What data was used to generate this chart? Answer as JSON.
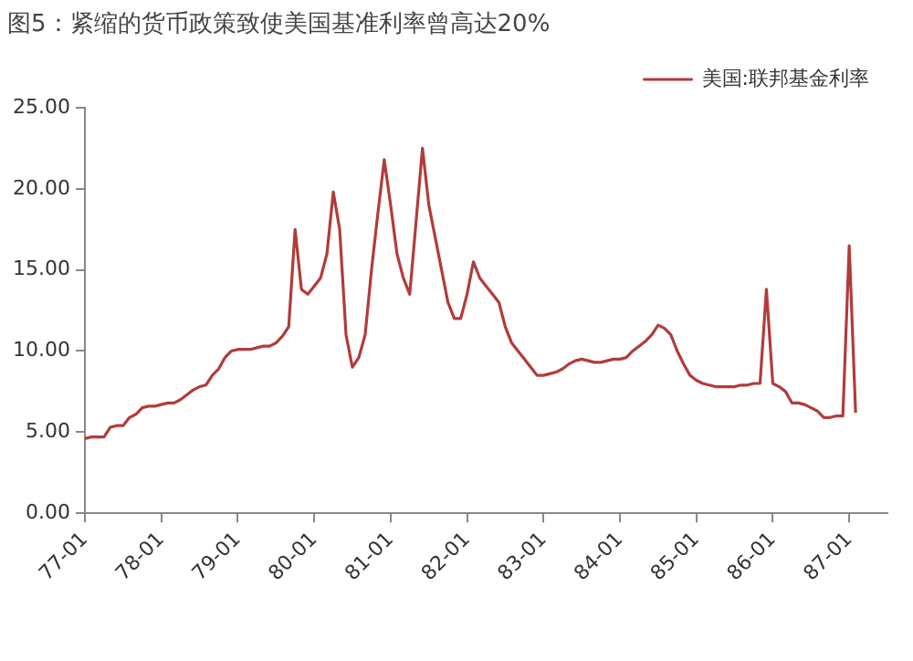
{
  "chart_data": {
    "type": "line",
    "title": "图5：紧缩的货币政策致使美国基准利率曾高达20%",
    "categories": [
      "77-01",
      null,
      null,
      null,
      null,
      null,
      null,
      null,
      null,
      null,
      null,
      null,
      "78-01",
      null,
      null,
      null,
      null,
      null,
      null,
      null,
      null,
      null,
      null,
      null,
      "79-01",
      null,
      null,
      null,
      null,
      null,
      null,
      null,
      null,
      null,
      null,
      null,
      "80-01",
      null,
      null,
      null,
      null,
      null,
      null,
      null,
      null,
      null,
      null,
      null,
      "81-01",
      null,
      null,
      null,
      null,
      null,
      null,
      null,
      null,
      null,
      null,
      null,
      "82-01",
      null,
      null,
      null,
      null,
      null,
      null,
      null,
      null,
      null,
      null,
      null,
      "83-01",
      null,
      null,
      null,
      null,
      null,
      null,
      null,
      null,
      null,
      null,
      null,
      "84-01",
      null,
      null,
      null,
      null,
      null,
      null,
      null,
      null,
      null,
      null,
      null,
      "85-01",
      null,
      null,
      null,
      null,
      null,
      null,
      null,
      null,
      null,
      null,
      null,
      "86-01",
      null,
      null,
      null,
      null,
      null,
      null,
      null,
      null,
      null,
      null,
      null,
      "87-01",
      null,
      null,
      null,
      null,
      null,
      null
    ],
    "series": [
      {
        "name": "美国:联邦基金利率",
        "color": "#b23b3b",
        "values": [
          4.6,
          4.7,
          4.7,
          4.7,
          5.3,
          5.4,
          5.4,
          5.9,
          6.1,
          6.5,
          6.6,
          6.6,
          6.7,
          6.8,
          6.8,
          7.0,
          7.3,
          7.6,
          7.8,
          7.9,
          8.5,
          8.9,
          9.6,
          10.0,
          10.1,
          10.1,
          10.1,
          10.2,
          10.3,
          10.3,
          10.5,
          10.9,
          11.5,
          17.5,
          13.8,
          13.5,
          14.0,
          14.5,
          16.0,
          19.8,
          17.5,
          11.0,
          9.0,
          9.6,
          11.0,
          15.0,
          18.5,
          21.8,
          19.0,
          16.0,
          14.5,
          13.5,
          18.0,
          22.5,
          19.0,
          17.0,
          15.0,
          13.0,
          12.0,
          12.0,
          13.5,
          15.5,
          14.5,
          14.0,
          13.5,
          13.0,
          11.5,
          10.5,
          10.0,
          9.5,
          9.0,
          8.5,
          8.5,
          8.6,
          8.7,
          8.9,
          9.2,
          9.4,
          9.5,
          9.4,
          9.3,
          9.3,
          9.4,
          9.5,
          9.5,
          9.6,
          10.0,
          10.3,
          10.6,
          11.0,
          11.6,
          11.4,
          11.0,
          10.0,
          9.2,
          8.5,
          8.2,
          8.0,
          7.9,
          7.8,
          7.8,
          7.8,
          7.8,
          7.9,
          7.9,
          8.0,
          8.0,
          13.8,
          8.0,
          7.8,
          7.5,
          6.8,
          6.8,
          6.7,
          6.5,
          6.3,
          5.9,
          5.9,
          6.0,
          6.0,
          16.5,
          6.2,
          null,
          null,
          null,
          null,
          null
        ]
      }
    ],
    "ylim": [
      0,
      25
    ],
    "yticks": [
      {
        "value": 0,
        "label": "0.00"
      },
      {
        "value": 5,
        "label": "5.00"
      },
      {
        "value": 10,
        "label": "10.00"
      },
      {
        "value": 15,
        "label": "15.00"
      },
      {
        "value": 20,
        "label": "20.00"
      },
      {
        "value": 25,
        "label": "25.00"
      }
    ],
    "grid": false,
    "legend": "top right",
    "marker": "none",
    "line_style": "solid"
  }
}
